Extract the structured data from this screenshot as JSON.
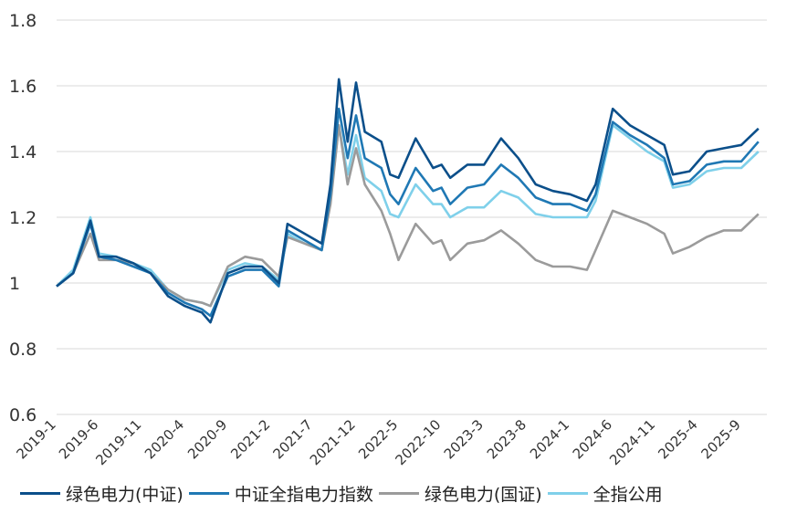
{
  "chart_data": {
    "type": "line",
    "title": "",
    "xlabel": "",
    "ylabel": "",
    "ylim": [
      0.6,
      1.8
    ],
    "yticks": [
      0.6,
      0.8,
      1,
      1.2,
      1.4,
      1.6,
      1.8
    ],
    "ytick_labels": [
      "0.6",
      "0.8",
      "1",
      "1.2",
      "1.4",
      "1.6",
      "1.8"
    ],
    "x_tick_labels": [
      "2019-1",
      "2019-6",
      "2019-11",
      "2020-4",
      "2020-9",
      "2021-2",
      "2021-7",
      "2021-12",
      "2022-5",
      "2022-10",
      "2023-3",
      "2023-8",
      "2024-1",
      "2024-6",
      "2024-11",
      "2025-4",
      "2025-9"
    ],
    "grid": "horizontal",
    "legend_position": "bottom",
    "series": [
      {
        "name": "绿色电力(中证)",
        "color": "#0b4f8a",
        "x": [
          "2019-01",
          "2019-03",
          "2019-05",
          "2019-06",
          "2019-08",
          "2019-10",
          "2019-12",
          "2020-02",
          "2020-04",
          "2020-06",
          "2020-07",
          "2020-09",
          "2020-11",
          "2021-01",
          "2021-03",
          "2021-04",
          "2021-06",
          "2021-08",
          "2021-09",
          "2021-10",
          "2021-11",
          "2021-12",
          "2022-01",
          "2022-03",
          "2022-04",
          "2022-05",
          "2022-07",
          "2022-09",
          "2022-10",
          "2022-11",
          "2023-01",
          "2023-03",
          "2023-05",
          "2023-07",
          "2023-09",
          "2023-11",
          "2024-01",
          "2024-03",
          "2024-04",
          "2024-06",
          "2024-08",
          "2024-10",
          "2024-12",
          "2025-01",
          "2025-03",
          "2025-05",
          "2025-07",
          "2025-09",
          "2025-11"
        ],
        "values": [
          0.99,
          1.03,
          1.19,
          1.08,
          1.08,
          1.06,
          1.03,
          0.96,
          0.93,
          0.91,
          0.88,
          1.03,
          1.05,
          1.05,
          1.0,
          1.18,
          1.15,
          1.12,
          1.3,
          1.62,
          1.43,
          1.61,
          1.46,
          1.43,
          1.33,
          1.32,
          1.44,
          1.35,
          1.36,
          1.32,
          1.36,
          1.36,
          1.44,
          1.38,
          1.3,
          1.28,
          1.27,
          1.25,
          1.3,
          1.53,
          1.48,
          1.45,
          1.42,
          1.33,
          1.34,
          1.4,
          1.41,
          1.42,
          1.47
        ]
      },
      {
        "name": "中证全指电力指数",
        "color": "#1f78b4",
        "x": [
          "2019-01",
          "2019-03",
          "2019-05",
          "2019-06",
          "2019-08",
          "2019-10",
          "2019-12",
          "2020-02",
          "2020-04",
          "2020-06",
          "2020-07",
          "2020-09",
          "2020-11",
          "2021-01",
          "2021-03",
          "2021-04",
          "2021-06",
          "2021-08",
          "2021-09",
          "2021-10",
          "2021-11",
          "2021-12",
          "2022-01",
          "2022-03",
          "2022-04",
          "2022-05",
          "2022-07",
          "2022-09",
          "2022-10",
          "2022-11",
          "2023-01",
          "2023-03",
          "2023-05",
          "2023-07",
          "2023-09",
          "2023-11",
          "2024-01",
          "2024-03",
          "2024-04",
          "2024-06",
          "2024-08",
          "2024-10",
          "2024-12",
          "2025-01",
          "2025-03",
          "2025-05",
          "2025-07",
          "2025-09",
          "2025-11"
        ],
        "values": [
          0.99,
          1.03,
          1.18,
          1.08,
          1.07,
          1.05,
          1.03,
          0.97,
          0.94,
          0.92,
          0.9,
          1.02,
          1.04,
          1.04,
          0.99,
          1.16,
          1.13,
          1.1,
          1.27,
          1.53,
          1.38,
          1.51,
          1.38,
          1.35,
          1.27,
          1.24,
          1.35,
          1.28,
          1.29,
          1.24,
          1.29,
          1.3,
          1.36,
          1.32,
          1.26,
          1.24,
          1.24,
          1.22,
          1.27,
          1.49,
          1.45,
          1.42,
          1.38,
          1.3,
          1.31,
          1.36,
          1.37,
          1.37,
          1.43
        ]
      },
      {
        "name": "绿色电力(国证)",
        "color": "#9b9b9b",
        "x": [
          "2019-01",
          "2019-03",
          "2019-05",
          "2019-06",
          "2019-08",
          "2019-10",
          "2019-12",
          "2020-02",
          "2020-04",
          "2020-06",
          "2020-07",
          "2020-09",
          "2020-11",
          "2021-01",
          "2021-03",
          "2021-04",
          "2021-06",
          "2021-08",
          "2021-09",
          "2021-10",
          "2021-11",
          "2021-12",
          "2022-01",
          "2022-03",
          "2022-04",
          "2022-05",
          "2022-07",
          "2022-09",
          "2022-10",
          "2022-11",
          "2023-01",
          "2023-03",
          "2023-05",
          "2023-07",
          "2023-09",
          "2023-11",
          "2024-01",
          "2024-03",
          "2024-04",
          "2024-06",
          "2024-08",
          "2024-10",
          "2024-12",
          "2025-01",
          "2025-03",
          "2025-05",
          "2025-07",
          "2025-09",
          "2025-11"
        ],
        "values": [
          0.99,
          1.03,
          1.15,
          1.07,
          1.07,
          1.06,
          1.03,
          0.98,
          0.95,
          0.94,
          0.93,
          1.05,
          1.08,
          1.07,
          1.02,
          1.14,
          1.12,
          1.1,
          1.24,
          1.48,
          1.3,
          1.41,
          1.3,
          1.22,
          1.15,
          1.07,
          1.18,
          1.12,
          1.13,
          1.07,
          1.12,
          1.13,
          1.16,
          1.12,
          1.07,
          1.05,
          1.05,
          1.04,
          1.1,
          1.22,
          1.2,
          1.18,
          1.15,
          1.09,
          1.11,
          1.14,
          1.16,
          1.16,
          1.21
        ]
      },
      {
        "name": "全指公用",
        "color": "#7fd0ea",
        "x": [
          "2019-01",
          "2019-03",
          "2019-05",
          "2019-06",
          "2019-08",
          "2019-10",
          "2019-12",
          "2020-02",
          "2020-04",
          "2020-06",
          "2020-07",
          "2020-09",
          "2020-11",
          "2021-01",
          "2021-03",
          "2021-04",
          "2021-06",
          "2021-08",
          "2021-09",
          "2021-10",
          "2021-11",
          "2021-12",
          "2022-01",
          "2022-03",
          "2022-04",
          "2022-05",
          "2022-07",
          "2022-09",
          "2022-10",
          "2022-11",
          "2023-01",
          "2023-03",
          "2023-05",
          "2023-07",
          "2023-09",
          "2023-11",
          "2024-01",
          "2024-03",
          "2024-04",
          "2024-06",
          "2024-08",
          "2024-10",
          "2024-12",
          "2025-01",
          "2025-03",
          "2025-05",
          "2025-07",
          "2025-09",
          "2025-11"
        ],
        "values": [
          0.99,
          1.04,
          1.2,
          1.09,
          1.08,
          1.06,
          1.04,
          0.98,
          0.95,
          0.94,
          0.93,
          1.04,
          1.06,
          1.05,
          1.01,
          1.15,
          1.12,
          1.1,
          1.25,
          1.48,
          1.33,
          1.45,
          1.32,
          1.28,
          1.21,
          1.2,
          1.3,
          1.24,
          1.24,
          1.2,
          1.23,
          1.23,
          1.28,
          1.26,
          1.21,
          1.2,
          1.2,
          1.2,
          1.25,
          1.48,
          1.44,
          1.4,
          1.37,
          1.29,
          1.3,
          1.34,
          1.35,
          1.35,
          1.4
        ]
      }
    ]
  }
}
